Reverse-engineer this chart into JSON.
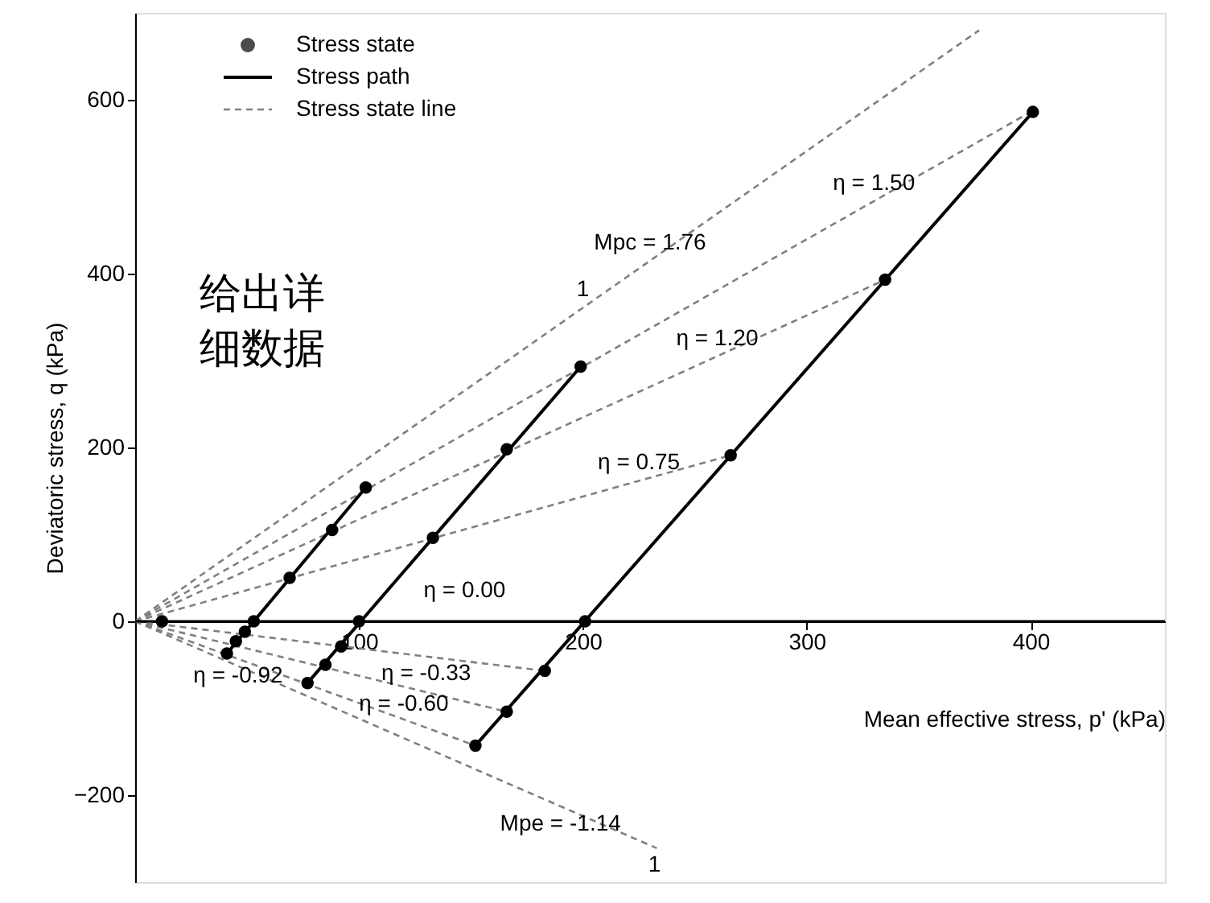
{
  "chart_data": {
    "type": "scatter",
    "xlabel": "Mean effective stress, p' (kPa)",
    "ylabel": "Deviatoric stress, q (kPa)",
    "ref_lines": [
      {
        "axis": "y",
        "value": 0,
        "label": "η = 0.00",
        "color": "#000000"
      }
    ],
    "xlim": [
      0,
      460
    ],
    "ylim": [
      -300,
      700
    ],
    "xticks": [
      100,
      200,
      300,
      400
    ],
    "yticks": [
      -200,
      0,
      200,
      400,
      600
    ],
    "grid": false,
    "legend": "top left",
    "series": [
      {
        "name": "Stress state line",
        "type": "line",
        "line_style": "dashed",
        "color": "#808080",
        "x": [
          0,
          377
        ],
        "values": [
          0,
          680
        ]
      },
      {
        "type": "line",
        "line_style": "dashed",
        "color": "#808080",
        "x": [
          0,
          400
        ],
        "values": [
          0,
          586
        ]
      },
      {
        "type": "line",
        "line_style": "dashed",
        "color": "#808080",
        "x": [
          0,
          335
        ],
        "values": [
          0,
          393
        ]
      },
      {
        "type": "line",
        "line_style": "dashed",
        "color": "#808080",
        "x": [
          0,
          266
        ],
        "values": [
          0,
          191
        ]
      },
      {
        "type": "line",
        "line_style": "dashed",
        "color": "#808080",
        "x": [
          0,
          183
        ],
        "values": [
          0,
          -57
        ]
      },
      {
        "type": "line",
        "line_style": "dashed",
        "color": "#808080",
        "x": [
          0,
          166
        ],
        "values": [
          0,
          -104
        ]
      },
      {
        "type": "line",
        "line_style": "dashed",
        "color": "#808080",
        "x": [
          0,
          152
        ],
        "values": [
          0,
          -143
        ]
      },
      {
        "type": "line",
        "line_style": "dashed",
        "color": "#808080",
        "x": [
          0,
          233
        ],
        "values": [
          0,
          -261
        ]
      },
      {
        "name": "Stress path",
        "type": "line",
        "line_style": "solid",
        "color": "#000000",
        "x": [
          41,
          103
        ],
        "values": [
          -37,
          154
        ]
      },
      {
        "type": "line",
        "line_style": "solid",
        "color": "#000000",
        "x": [
          77,
          199
        ],
        "values": [
          -71,
          293
        ]
      },
      {
        "type": "line",
        "line_style": "solid",
        "color": "#000000",
        "x": [
          152,
          401
        ],
        "values": [
          -143,
          586
        ]
      },
      {
        "name": "Stress state",
        "marker": "circle",
        "color": "#000000",
        "x": [
          12,
          41,
          45,
          49,
          53,
          69,
          88,
          103,
          77,
          85,
          92,
          100,
          133,
          166,
          199,
          152,
          166,
          183,
          201,
          266,
          335,
          401
        ],
        "values": [
          0,
          -37,
          -23,
          -12,
          0,
          50,
          105,
          154,
          -71,
          -50,
          -29,
          0,
          96,
          198,
          293,
          -143,
          -104,
          -57,
          0,
          191,
          393,
          586
        ]
      }
    ],
    "annotations": [
      {
        "text": "Mpc = 1.76",
        "x": 230,
        "y": 415
      },
      {
        "text": "1",
        "x": 200,
        "y": 361
      },
      {
        "text": "η = 1.50",
        "x": 330,
        "y": 483
      },
      {
        "text": "η = 1.20",
        "x": 260,
        "y": 305
      },
      {
        "text": "η = 0.75",
        "x": 225,
        "y": 162
      },
      {
        "text": "η = -0.33",
        "x": 130,
        "y": -40
      },
      {
        "text": "η = -0.92",
        "x": 46,
        "y": -43
      },
      {
        "text": "η = -0.60",
        "x": 120,
        "y": -75
      },
      {
        "text": "Mpe = -1.14",
        "x": 190,
        "y": -213
      },
      {
        "text": "1",
        "x": 232,
        "y": -260
      },
      "给出详细数据"
    ]
  }
}
